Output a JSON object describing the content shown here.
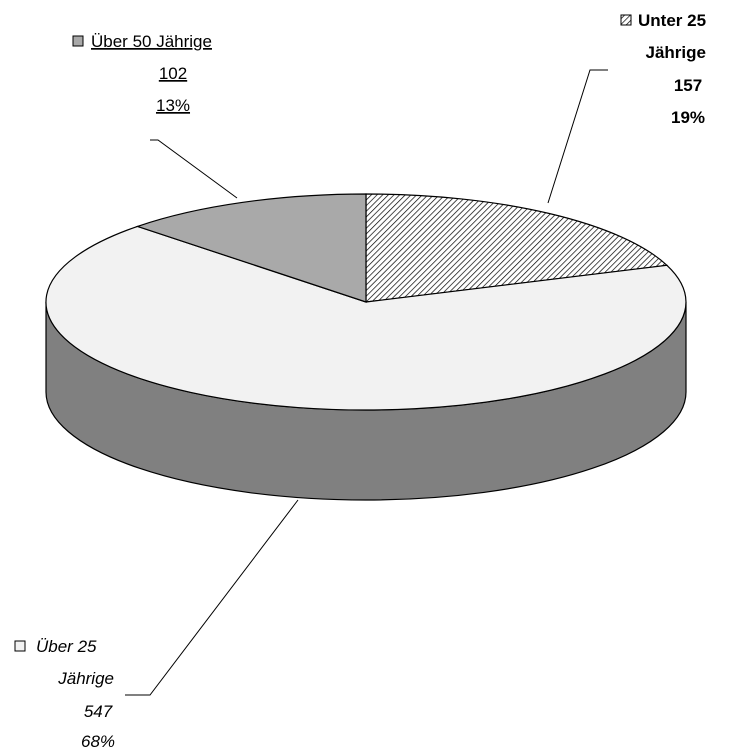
{
  "chart_data": {
    "type": "pie",
    "style": "3d",
    "legend": "none",
    "slices": [
      {
        "label_lines": [
          "Unter 25",
          "Jährige"
        ],
        "value": 157,
        "percent": "19%",
        "color": "#ffffff",
        "fill": "diagonal-hatch",
        "label_style": "bold"
      },
      {
        "label_lines": [
          "Über 25",
          "Jährige"
        ],
        "value": 547,
        "percent": "68%",
        "color": "#f2f2f2",
        "fill": "solid",
        "label_style": "italic"
      },
      {
        "label_lines": [
          "Über 50 Jährige"
        ],
        "value": 102,
        "percent": "13%",
        "color": "#a9a9a9",
        "fill": "solid",
        "label_style": "underline"
      }
    ],
    "side_color": "#808080",
    "outline_color": "#000000"
  }
}
